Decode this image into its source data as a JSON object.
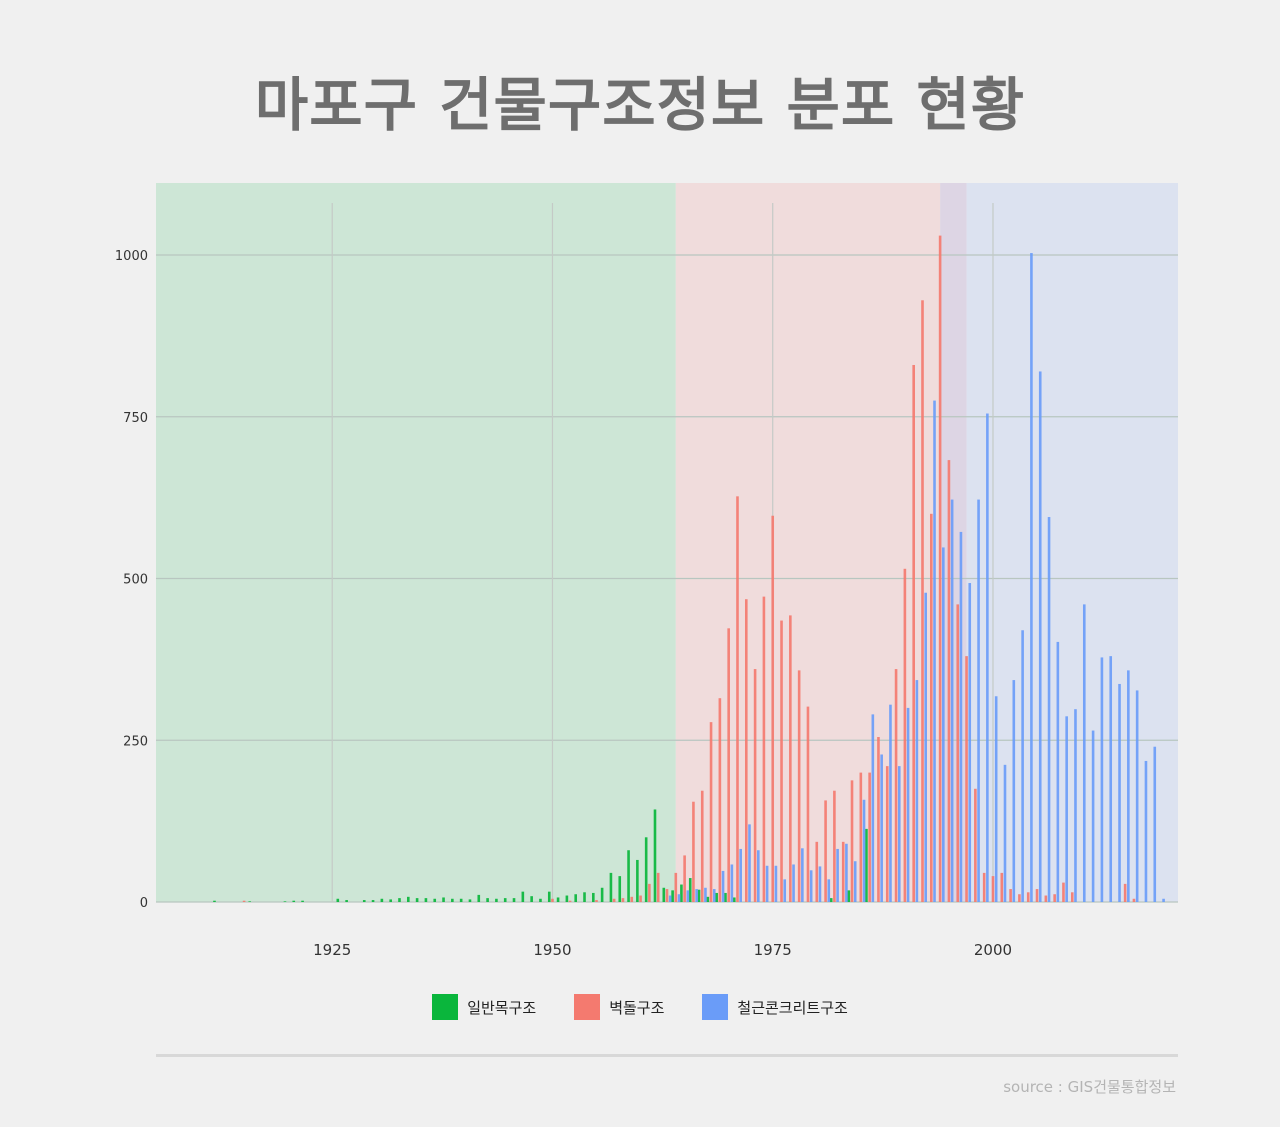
{
  "title": "마포구 건물구조정보 분포 현황",
  "source": "source : GIS건물통합정보",
  "chart_data": {
    "type": "bar",
    "x_range": [
      1905,
      2021
    ],
    "ylim": [
      0,
      1100
    ],
    "y_ticks": [
      0,
      250,
      500,
      750,
      1000
    ],
    "x_ticks": [
      1925,
      1950,
      1975,
      2000
    ],
    "grid": true,
    "legend_position": "bottom",
    "eras": [
      {
        "start": 1905,
        "end": 1964,
        "color": "#cde6d6"
      },
      {
        "start": 1964,
        "end": 1994,
        "color": "#f0dcdc"
      },
      {
        "start": 1994,
        "end": 1997,
        "color": "#ddd5e4"
      },
      {
        "start": 1997,
        "end": 2021,
        "color": "#dce2f0"
      }
    ],
    "series": [
      {
        "name": "일반목구조",
        "color": "#0ab63c",
        "points": [
          [
            1912,
            2
          ],
          [
            1916,
            1
          ],
          [
            1920,
            1
          ],
          [
            1921,
            2
          ],
          [
            1922,
            2
          ],
          [
            1926,
            5
          ],
          [
            1927,
            3
          ],
          [
            1929,
            3
          ],
          [
            1930,
            3
          ],
          [
            1931,
            5
          ],
          [
            1932,
            4
          ],
          [
            1933,
            6
          ],
          [
            1934,
            8
          ],
          [
            1935,
            6
          ],
          [
            1936,
            6
          ],
          [
            1937,
            5
          ],
          [
            1938,
            7
          ],
          [
            1939,
            5
          ],
          [
            1940,
            5
          ],
          [
            1941,
            4
          ],
          [
            1942,
            11
          ],
          [
            1943,
            6
          ],
          [
            1944,
            5
          ],
          [
            1945,
            6
          ],
          [
            1946,
            6
          ],
          [
            1947,
            16
          ],
          [
            1948,
            9
          ],
          [
            1949,
            5
          ],
          [
            1950,
            16
          ],
          [
            1951,
            7
          ],
          [
            1952,
            10
          ],
          [
            1953,
            12
          ],
          [
            1954,
            15
          ],
          [
            1955,
            14
          ],
          [
            1956,
            22
          ],
          [
            1957,
            45
          ],
          [
            1958,
            40
          ],
          [
            1959,
            80
          ],
          [
            1960,
            65
          ],
          [
            1961,
            100
          ],
          [
            1962,
            143
          ],
          [
            1963,
            22
          ],
          [
            1964,
            18
          ],
          [
            1965,
            27
          ],
          [
            1966,
            37
          ],
          [
            1967,
            19
          ],
          [
            1968,
            8
          ],
          [
            1969,
            14
          ],
          [
            1970,
            14
          ],
          [
            1971,
            7
          ],
          [
            1982,
            6
          ],
          [
            1984,
            18
          ],
          [
            1986,
            113
          ]
        ]
      },
      {
        "name": "벽돌구조",
        "color": "#f47a6f",
        "points": [
          [
            1915,
            2
          ],
          [
            1950,
            5
          ],
          [
            1952,
            2
          ],
          [
            1955,
            3
          ],
          [
            1957,
            5
          ],
          [
            1958,
            6
          ],
          [
            1959,
            8
          ],
          [
            1960,
            10
          ],
          [
            1961,
            28
          ],
          [
            1962,
            45
          ],
          [
            1963,
            20
          ],
          [
            1964,
            45
          ],
          [
            1965,
            72
          ],
          [
            1966,
            155
          ],
          [
            1967,
            172
          ],
          [
            1968,
            278
          ],
          [
            1969,
            315
          ],
          [
            1970,
            423
          ],
          [
            1971,
            627
          ],
          [
            1972,
            468
          ],
          [
            1973,
            360
          ],
          [
            1974,
            472
          ],
          [
            1975,
            597
          ],
          [
            1976,
            435
          ],
          [
            1977,
            443
          ],
          [
            1978,
            358
          ],
          [
            1979,
            302
          ],
          [
            1980,
            93
          ],
          [
            1981,
            157
          ],
          [
            1982,
            172
          ],
          [
            1983,
            93
          ],
          [
            1984,
            188
          ],
          [
            1985,
            200
          ],
          [
            1986,
            200
          ],
          [
            1987,
            255
          ],
          [
            1988,
            210
          ],
          [
            1989,
            360
          ],
          [
            1990,
            515
          ],
          [
            1991,
            830
          ],
          [
            1992,
            930
          ],
          [
            1993,
            600
          ],
          [
            1994,
            1030
          ],
          [
            1995,
            683
          ],
          [
            1996,
            460
          ],
          [
            1997,
            380
          ],
          [
            1998,
            175
          ],
          [
            1999,
            45
          ],
          [
            2000,
            40
          ],
          [
            2001,
            45
          ],
          [
            2002,
            20
          ],
          [
            2003,
            12
          ],
          [
            2004,
            15
          ],
          [
            2005,
            20
          ],
          [
            2006,
            10
          ],
          [
            2007,
            12
          ],
          [
            2008,
            30
          ],
          [
            2009,
            15
          ],
          [
            2015,
            28
          ],
          [
            2016,
            5
          ]
        ]
      },
      {
        "name": "철근콘크리트구조",
        "color": "#6a9cf8",
        "points": [
          [
            1963,
            10
          ],
          [
            1964,
            12
          ],
          [
            1965,
            18
          ],
          [
            1966,
            20
          ],
          [
            1967,
            22
          ],
          [
            1968,
            20
          ],
          [
            1969,
            48
          ],
          [
            1970,
            58
          ],
          [
            1971,
            82
          ],
          [
            1972,
            120
          ],
          [
            1973,
            80
          ],
          [
            1974,
            56
          ],
          [
            1975,
            56
          ],
          [
            1976,
            35
          ],
          [
            1977,
            58
          ],
          [
            1978,
            83
          ],
          [
            1979,
            49
          ],
          [
            1980,
            55
          ],
          [
            1981,
            35
          ],
          [
            1982,
            82
          ],
          [
            1983,
            90
          ],
          [
            1984,
            63
          ],
          [
            1985,
            158
          ],
          [
            1986,
            290
          ],
          [
            1987,
            228
          ],
          [
            1988,
            305
          ],
          [
            1989,
            210
          ],
          [
            1990,
            300
          ],
          [
            1991,
            343
          ],
          [
            1992,
            478
          ],
          [
            1993,
            775
          ],
          [
            1994,
            548
          ],
          [
            1995,
            622
          ],
          [
            1996,
            572
          ],
          [
            1997,
            493
          ],
          [
            1998,
            622
          ],
          [
            1999,
            755
          ],
          [
            2000,
            318
          ],
          [
            2001,
            212
          ],
          [
            2002,
            343
          ],
          [
            2003,
            420
          ],
          [
            2004,
            1003
          ],
          [
            2005,
            820
          ],
          [
            2006,
            595
          ],
          [
            2007,
            402
          ],
          [
            2008,
            287
          ],
          [
            2009,
            298
          ],
          [
            2010,
            460
          ],
          [
            2011,
            265
          ],
          [
            2012,
            378
          ],
          [
            2013,
            380
          ],
          [
            2014,
            337
          ],
          [
            2015,
            358
          ],
          [
            2016,
            327
          ],
          [
            2017,
            218
          ],
          [
            2018,
            240
          ],
          [
            2019,
            5
          ]
        ]
      }
    ]
  }
}
